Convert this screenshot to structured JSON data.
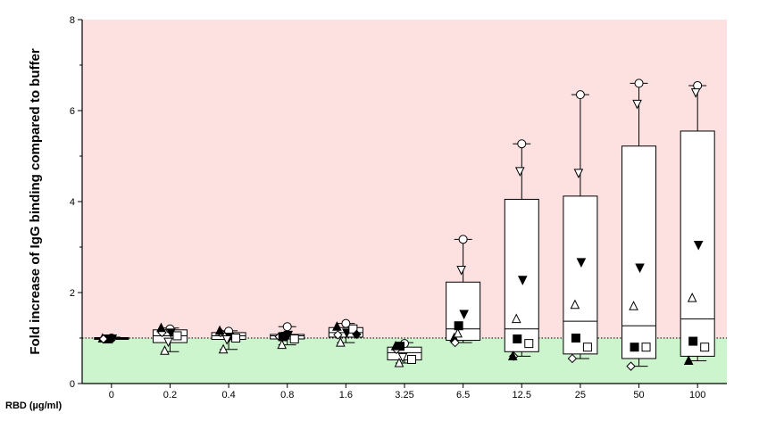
{
  "chart_data": {
    "type": "box",
    "title": "",
    "ylabel": "Fold increase of IgG binding compared to buffer",
    "xlabel": "RBD (µg/ml)",
    "ylim": [
      0,
      8
    ],
    "yticks": [
      "0",
      "2",
      "4",
      "6",
      "8"
    ],
    "categories": [
      "0",
      "0.2",
      "0.4",
      "0.8",
      "1.6",
      "3.25",
      "6.5",
      "12.5",
      "25",
      "50",
      "100"
    ],
    "reference_line": 1,
    "background_bands": [
      {
        "from": 1,
        "to": 8,
        "color": "#fde0e0"
      },
      {
        "from": 0,
        "to": 1,
        "color": "#cdf5cd"
      }
    ],
    "boxes": [
      {
        "category": "0",
        "min": 0.97,
        "q1": 0.97,
        "median": 0.99,
        "q3": 1.01,
        "max": 1.02
      },
      {
        "category": "0.2",
        "min": 0.7,
        "q1": 0.9,
        "median": 1.05,
        "q3": 1.18,
        "max": 1.22
      },
      {
        "category": "0.4",
        "min": 0.75,
        "q1": 0.97,
        "median": 1.05,
        "q3": 1.12,
        "max": 1.16
      },
      {
        "category": "0.8",
        "min": 0.85,
        "q1": 0.98,
        "median": 1.05,
        "q3": 1.08,
        "max": 1.25
      },
      {
        "category": "1.6",
        "min": 0.9,
        "q1": 1.02,
        "median": 1.12,
        "q3": 1.23,
        "max": 1.32
      },
      {
        "category": "3.25",
        "min": 0.45,
        "q1": 0.52,
        "median": 0.68,
        "q3": 0.8,
        "max": 0.9
      },
      {
        "category": "6.5",
        "min": 0.9,
        "q1": 0.95,
        "median": 1.2,
        "q3": 2.23,
        "max": 3.17
      },
      {
        "category": "12.5",
        "min": 0.6,
        "q1": 0.7,
        "median": 1.2,
        "q3": 4.05,
        "max": 5.27
      },
      {
        "category": "25",
        "min": 0.55,
        "q1": 0.65,
        "median": 1.37,
        "q3": 4.12,
        "max": 6.35
      },
      {
        "category": "50",
        "min": 0.38,
        "q1": 0.55,
        "median": 1.27,
        "q3": 5.22,
        "max": 6.6
      },
      {
        "category": "100",
        "min": 0.5,
        "q1": 0.6,
        "median": 1.42,
        "q3": 5.55,
        "max": 6.55
      }
    ],
    "points": [
      {
        "category": "0",
        "shape": "circle",
        "values": [
          1
        ]
      },
      {
        "category": "0",
        "shape": "tri-down-filled",
        "values": [
          0.99
        ]
      },
      {
        "category": "0",
        "shape": "square-filled",
        "values": [
          0.98
        ]
      },
      {
        "category": "0",
        "shape": "tri-up-filled",
        "values": [
          0.99
        ]
      },
      {
        "category": "0",
        "shape": "diamond",
        "values": [
          0.98
        ]
      },
      {
        "category": "0.2",
        "shape": "circle",
        "values": [
          1.2
        ]
      },
      {
        "category": "0.2",
        "shape": "tri-down-filled",
        "values": [
          1.12
        ]
      },
      {
        "category": "0.2",
        "shape": "tri-up",
        "values": [
          0.72
        ]
      },
      {
        "category": "0.2",
        "shape": "tri-down",
        "values": [
          0.92
        ]
      },
      {
        "category": "0.2",
        "shape": "square",
        "values": [
          1.05
        ]
      },
      {
        "category": "0.2",
        "shape": "diamond",
        "values": [
          1.12
        ]
      },
      {
        "category": "0.2",
        "shape": "tri-up-filled",
        "values": [
          1.22
        ]
      },
      {
        "category": "0.4",
        "shape": "circle",
        "values": [
          1.15
        ]
      },
      {
        "category": "0.4",
        "shape": "tri-up",
        "values": [
          0.75
        ]
      },
      {
        "category": "0.4",
        "shape": "tri-down-filled",
        "values": [
          1.03
        ]
      },
      {
        "category": "0.4",
        "shape": "square",
        "values": [
          1.0
        ]
      },
      {
        "category": "0.4",
        "shape": "tri-down",
        "values": [
          0.97
        ]
      },
      {
        "category": "0.4",
        "shape": "diamond",
        "values": [
          1.12
        ]
      },
      {
        "category": "0.4",
        "shape": "tri-up-filled",
        "values": [
          1.16
        ]
      },
      {
        "category": "0.8",
        "shape": "diamond",
        "values": [
          1.03
        ]
      },
      {
        "category": "0.8",
        "shape": "tri-down",
        "values": [
          1.05
        ]
      },
      {
        "category": "0.8",
        "shape": "tri-up",
        "values": [
          0.85
        ]
      },
      {
        "category": "0.8",
        "shape": "square-filled",
        "values": [
          1.03
        ]
      },
      {
        "category": "0.8",
        "shape": "square",
        "values": [
          0.98
        ]
      },
      {
        "category": "0.8",
        "shape": "tri-down-filled",
        "values": [
          1.07
        ]
      },
      {
        "category": "0.8",
        "shape": "circle",
        "values": [
          1.25
        ]
      },
      {
        "category": "1.6",
        "shape": "diamond",
        "values": [
          1.07
        ]
      },
      {
        "category": "1.6",
        "shape": "tri-up-filled",
        "values": [
          1.25
        ]
      },
      {
        "category": "1.6",
        "shape": "tri-up",
        "values": [
          0.9
        ]
      },
      {
        "category": "1.6",
        "shape": "tri-down-filled",
        "values": [
          1.12
        ]
      },
      {
        "category": "1.6",
        "shape": "square",
        "values": [
          1.2
        ]
      },
      {
        "category": "1.6",
        "shape": "circle",
        "values": [
          1.32
        ]
      },
      {
        "category": "1.6",
        "shape": "diamond-filled",
        "values": [
          1.08
        ]
      },
      {
        "category": "3.25",
        "shape": "circle",
        "values": [
          0.88
        ]
      },
      {
        "category": "3.25",
        "shape": "tri-down",
        "values": [
          0.58
        ]
      },
      {
        "category": "3.25",
        "shape": "square-filled",
        "values": [
          0.82
        ]
      },
      {
        "category": "3.25",
        "shape": "tri-up",
        "values": [
          0.45
        ]
      },
      {
        "category": "3.25",
        "shape": "diamond",
        "values": [
          0.75
        ]
      },
      {
        "category": "3.25",
        "shape": "square",
        "values": [
          0.53
        ]
      },
      {
        "category": "3.25",
        "shape": "tri-up-filled",
        "values": [
          0.82
        ]
      },
      {
        "category": "6.5",
        "shape": "circle",
        "values": [
          3.17
        ]
      },
      {
        "category": "6.5",
        "shape": "tri-down",
        "values": [
          2.5
        ]
      },
      {
        "category": "6.5",
        "shape": "tri-down-filled",
        "values": [
          1.53
        ]
      },
      {
        "category": "6.5",
        "shape": "square-filled",
        "values": [
          1.27
        ]
      },
      {
        "category": "6.5",
        "shape": "tri-up-filled",
        "values": [
          1.0
        ]
      },
      {
        "category": "6.5",
        "shape": "diamond",
        "values": [
          0.9
        ]
      },
      {
        "category": "6.5",
        "shape": "tri-up",
        "values": [
          1.1
        ]
      },
      {
        "category": "12.5",
        "shape": "circle",
        "values": [
          5.27
        ]
      },
      {
        "category": "12.5",
        "shape": "tri-down",
        "values": [
          4.67
        ]
      },
      {
        "category": "12.5",
        "shape": "tri-down-filled",
        "values": [
          2.28
        ]
      },
      {
        "category": "12.5",
        "shape": "tri-up",
        "values": [
          1.42
        ]
      },
      {
        "category": "12.5",
        "shape": "square-filled",
        "values": [
          0.98
        ]
      },
      {
        "category": "12.5",
        "shape": "square",
        "values": [
          0.88
        ]
      },
      {
        "category": "12.5",
        "shape": "diamond",
        "values": [
          0.6
        ]
      },
      {
        "category": "12.5",
        "shape": "tri-up-filled",
        "values": [
          0.6
        ]
      },
      {
        "category": "25",
        "shape": "circle",
        "values": [
          6.35
        ]
      },
      {
        "category": "25",
        "shape": "tri-down",
        "values": [
          4.63
        ]
      },
      {
        "category": "25",
        "shape": "tri-down-filled",
        "values": [
          2.67
        ]
      },
      {
        "category": "25",
        "shape": "tri-up",
        "values": [
          1.73
        ]
      },
      {
        "category": "25",
        "shape": "square-filled",
        "values": [
          1.0
        ]
      },
      {
        "category": "25",
        "shape": "square",
        "values": [
          0.8
        ]
      },
      {
        "category": "25",
        "shape": "diamond",
        "values": [
          0.55
        ]
      },
      {
        "category": "50",
        "shape": "circle",
        "values": [
          6.6
        ]
      },
      {
        "category": "50",
        "shape": "tri-down",
        "values": [
          6.15
        ]
      },
      {
        "category": "50",
        "shape": "tri-down-filled",
        "values": [
          2.55
        ]
      },
      {
        "category": "50",
        "shape": "tri-up",
        "values": [
          1.7
        ]
      },
      {
        "category": "50",
        "shape": "square-filled",
        "values": [
          0.8
        ]
      },
      {
        "category": "50",
        "shape": "square",
        "values": [
          0.8
        ]
      },
      {
        "category": "50",
        "shape": "diamond",
        "values": [
          0.38
        ]
      },
      {
        "category": "100",
        "shape": "circle",
        "values": [
          6.55
        ]
      },
      {
        "category": "100",
        "shape": "tri-down",
        "values": [
          6.4
        ]
      },
      {
        "category": "100",
        "shape": "tri-down-filled",
        "values": [
          3.05
        ]
      },
      {
        "category": "100",
        "shape": "tri-up",
        "values": [
          1.88
        ]
      },
      {
        "category": "100",
        "shape": "square-filled",
        "values": [
          0.93
        ]
      },
      {
        "category": "100",
        "shape": "square",
        "values": [
          0.8
        ]
      },
      {
        "category": "100",
        "shape": "tri-up-filled",
        "values": [
          0.5
        ]
      }
    ],
    "grid": false,
    "legend": "none"
  }
}
